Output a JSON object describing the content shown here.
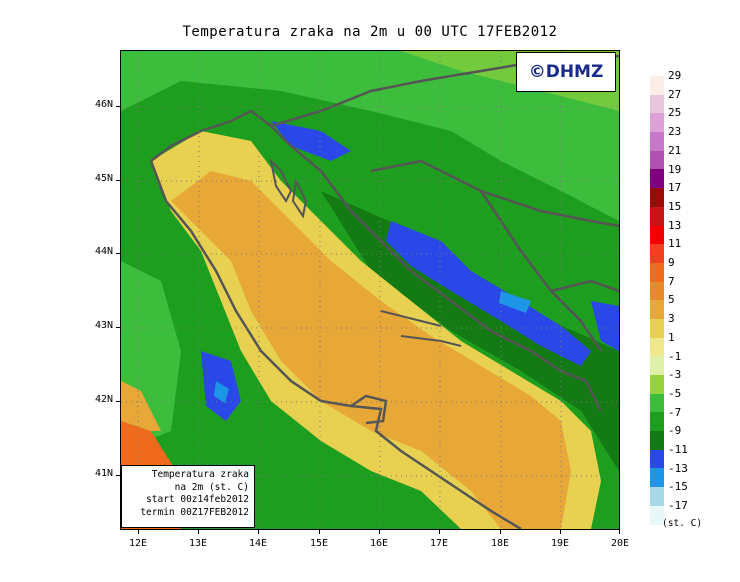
{
  "title": "Temperatura zraka na 2m u 00 UTC 17FEB2012",
  "copyright": "©DHMZ",
  "info_box": {
    "line1": "Temperatura zraka",
    "line2": "na 2m (st. C)",
    "line3": "start 00z14feb2012",
    "line4": "termin 00Z17FEB2012"
  },
  "axes": {
    "lat_labels": [
      "46N",
      "45N",
      "44N",
      "43N",
      "42N",
      "41N"
    ],
    "lon_labels": [
      "12E",
      "13E",
      "14E",
      "15E",
      "16E",
      "17E",
      "18E",
      "19E",
      "20E"
    ]
  },
  "colorbar": {
    "unit": "(st. C)",
    "labels": [
      "29",
      "27",
      "25",
      "23",
      "21",
      "19",
      "17",
      "15",
      "13",
      "11",
      "9",
      "7",
      "5",
      "3",
      "1",
      "-1",
      "-3",
      "-5",
      "-7",
      "-9",
      "-11",
      "-13",
      "-15",
      "-17"
    ],
    "colors": [
      "#fbeee6",
      "#e8c6dc",
      "#dca2d8",
      "#c878c8",
      "#b050b0",
      "#800080",
      "#9c0a0a",
      "#c81414",
      "#f00000",
      "#f04020",
      "#f06a1e",
      "#e88a2a",
      "#e8a838",
      "#e8d050",
      "#f0e68c",
      "#dff0a8",
      "#96d23c",
      "#3cbe3c",
      "#1e9e1e",
      "#147a14",
      "#2a48e8",
      "#1e96e8",
      "#a8d8e8",
      "#e8f8f8"
    ]
  },
  "colors": {
    "sea_warm": "#e8a838",
    "sea_mild": "#e8d050",
    "land_cold": "#1e9e1e",
    "land_very_cold": "#2a48e8",
    "coast_line": "#555555"
  }
}
